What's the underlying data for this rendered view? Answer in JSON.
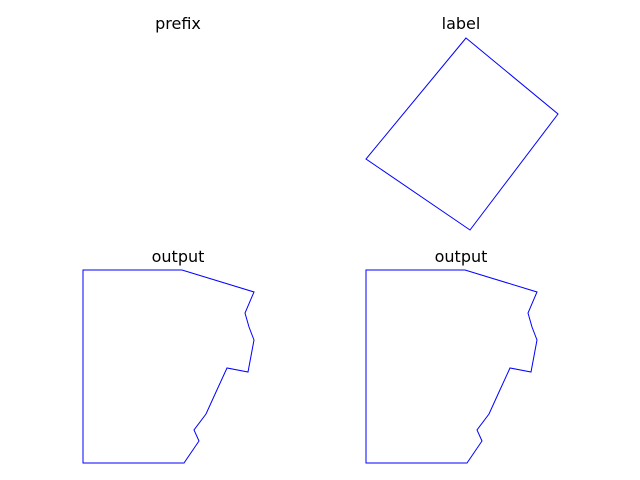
{
  "figure": {
    "line_color": "#0000ff",
    "background": "#ffffff"
  },
  "panels": [
    {
      "title": "prefix"
    },
    {
      "title": "label"
    },
    {
      "title": "output"
    },
    {
      "title": "output"
    }
  ]
}
